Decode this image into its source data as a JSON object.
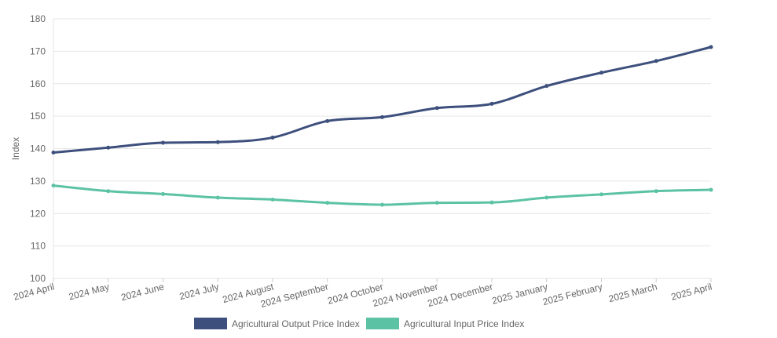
{
  "chart_data": {
    "type": "line",
    "ylabel": "Index",
    "ylim": [
      100,
      180
    ],
    "yticks": [
      100,
      110,
      120,
      130,
      140,
      150,
      160,
      170,
      180
    ],
    "grid": true,
    "legend_position": "bottom",
    "categories": [
      "2024 April",
      "2024 May",
      "2024 June",
      "2024 July",
      "2024 August",
      "2024 September",
      "2024 October",
      "2024 November",
      "2024 December",
      "2025 January",
      "2025 February",
      "2025 March",
      "2025 April"
    ],
    "series": [
      {
        "name": "Agricultural Output Price Index",
        "color": "#3d4f7c",
        "values": [
          138.8,
          140.3,
          141.8,
          142.0,
          143.4,
          148.5,
          149.7,
          152.5,
          153.8,
          159.3,
          163.4,
          167.0,
          171.3
        ]
      },
      {
        "name": "Agricultural Input Price Index",
        "color": "#5cc2a4",
        "values": [
          128.6,
          126.9,
          126.0,
          124.9,
          124.3,
          123.3,
          122.7,
          123.3,
          123.4,
          124.9,
          125.9,
          126.9,
          127.3
        ]
      }
    ]
  }
}
